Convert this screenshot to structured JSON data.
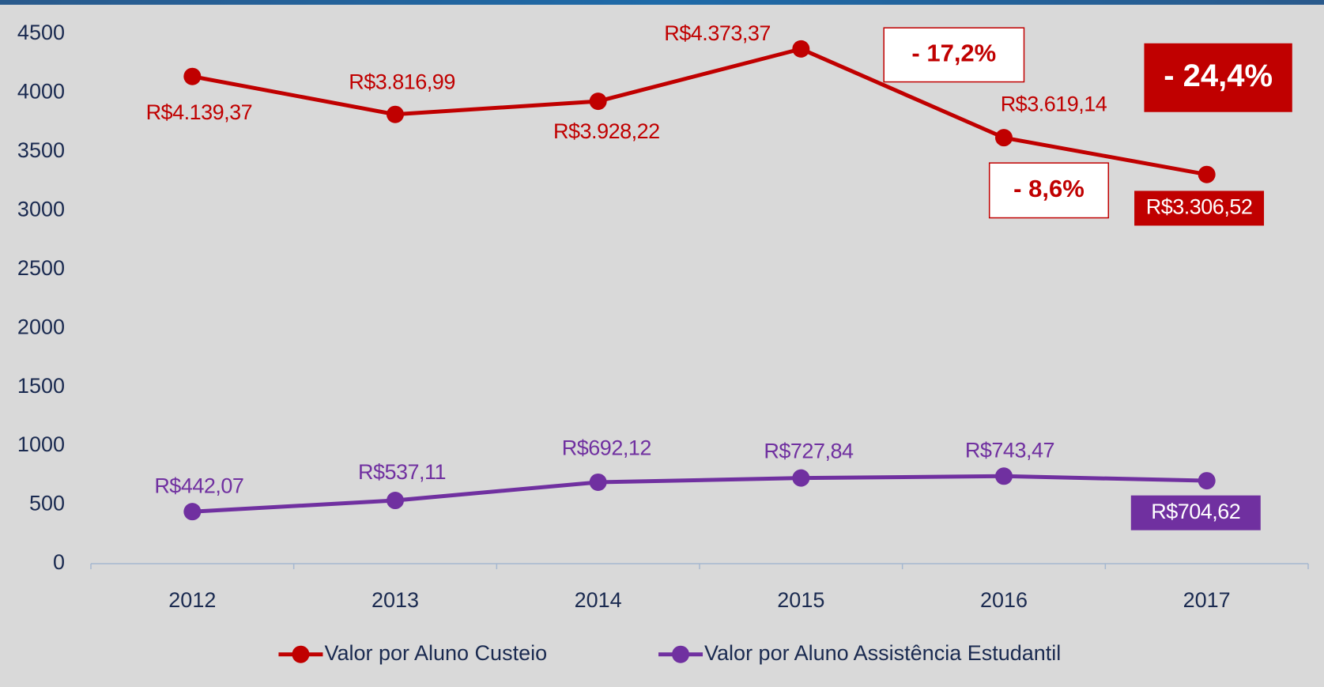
{
  "chart_data": {
    "type": "line",
    "categories": [
      "2012",
      "2013",
      "2014",
      "2015",
      "2016",
      "2017"
    ],
    "series": [
      {
        "name": "Valor por Aluno Custeio",
        "color": "#c00000",
        "values": [
          4139.37,
          3816.99,
          3928.22,
          4373.37,
          3619.14,
          3306.52
        ],
        "value_labels": [
          "R$4.139,37",
          "R$3.816,99",
          "R$3.928,22",
          "R$4.373,37",
          "R$3.619,14",
          "R$3.306,52"
        ]
      },
      {
        "name": "Valor por Aluno Assistência Estudantil",
        "color": "#7030a0",
        "values": [
          442.07,
          537.11,
          692.12,
          727.84,
          743.47,
          704.62
        ],
        "value_labels": [
          "R$442,07",
          "R$537,11",
          "R$692,12",
          "R$727,84",
          "R$743,47",
          "R$704,62"
        ]
      }
    ],
    "ylim": [
      0,
      4500
    ],
    "yticks": [
      0,
      500,
      1000,
      1500,
      2000,
      2500,
      3000,
      3500,
      4000,
      4500
    ],
    "grid": false,
    "legend": "bottom",
    "annotations": [
      "- 17,2%",
      "- 8,6%",
      "- 24,4%"
    ]
  }
}
